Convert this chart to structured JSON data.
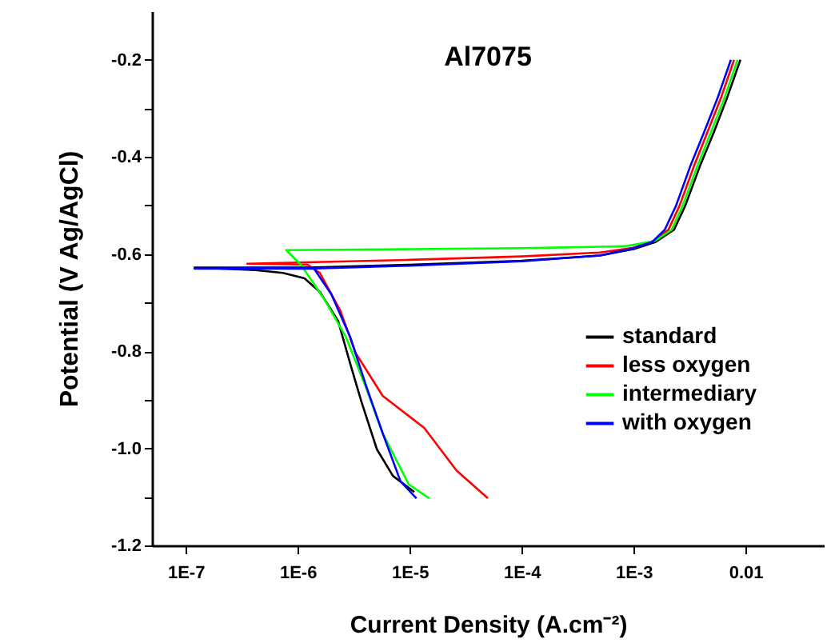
{
  "chart_data": {
    "type": "line",
    "title": "Al7075",
    "xlabel": "Current Density  (A.cm⁻²)",
    "ylabel": "Potential (V Ag/AgCl)",
    "log": "x",
    "xlim": [
      5e-08,
      0.05
    ],
    "ylim": [
      -1.2,
      -0.1
    ],
    "xticks": [
      {
        "value": 1e-07,
        "label": "1E-7"
      },
      {
        "value": 1e-06,
        "label": "1E-6"
      },
      {
        "value": 1e-05,
        "label": "1E-5"
      },
      {
        "value": 0.0001,
        "label": "1E-4"
      },
      {
        "value": 0.001,
        "label": "1E-3"
      },
      0.01
    ],
    "yticks": [
      {
        "value": -1.2,
        "label": "-1.2"
      },
      {
        "value": -1.1,
        "label": null
      },
      {
        "value": -1.0,
        "label": "-1.0"
      },
      {
        "value": -0.9,
        "label": null
      },
      -0.8,
      {
        "value": -0.7,
        "label": null
      },
      -0.6,
      {
        "value": -0.5,
        "label": null
      },
      -0.4,
      {
        "value": -0.3,
        "label": null
      },
      -0.2
    ],
    "grid": false,
    "legend": "right",
    "marker": "none",
    "line_style": "solid",
    "series": [
      {
        "name": "standard",
        "color": "#000000",
        "x": [
          1.1e-05,
          7.1e-06,
          5.1e-06,
          3.7e-06,
          2.95e-06,
          2.3e-06,
          1.58e-06,
          1.15e-06,
          7.4e-07,
          4.2e-07,
          1.2e-07,
          1.26e-06,
          1e-05,
          0.0001,
          0.0005,
          0.001,
          0.00158,
          0.0023,
          0.0029,
          0.0039,
          0.0052,
          0.0068,
          0.009
        ],
        "values": [
          -1.09,
          -1.057,
          -1.002,
          -0.903,
          -0.826,
          -0.738,
          -0.678,
          -0.65,
          -0.639,
          -0.633,
          -0.628,
          -0.628,
          -0.622,
          -0.614,
          -0.603,
          -0.59,
          -0.575,
          -0.55,
          -0.5,
          -0.42,
          -0.35,
          -0.28,
          -0.2
        ]
      },
      {
        "name": "less oxygen",
        "color": "#ff0000",
        "x": [
          5e-05,
          2.63e-05,
          1.35e-05,
          5.75e-06,
          3.3e-06,
          2.4e-06,
          1.58e-06,
          1.23e-06,
          3.55e-07,
          1e-05,
          0.0001,
          0.0005,
          0.001,
          0.0015,
          0.00205,
          0.00258,
          0.00345,
          0.00455,
          0.006,
          0.0079
        ],
        "values": [
          -1.103,
          -1.046,
          -0.958,
          -0.892,
          -0.804,
          -0.716,
          -0.639,
          -0.622,
          -0.62,
          -0.612,
          -0.605,
          -0.597,
          -0.587,
          -0.573,
          -0.55,
          -0.5,
          -0.42,
          -0.35,
          -0.28,
          -0.2
        ]
      },
      {
        "name": "intermediary",
        "color": "#00ff00",
        "x": [
          1.5e-05,
          9.8e-06,
          5.75e-06,
          4e-06,
          2.7e-06,
          1.74e-06,
          1.07e-06,
          7.9e-07,
          1e-05,
          0.0001,
          0.00083,
          0.00155,
          0.00219,
          0.00275,
          0.0037,
          0.0049,
          0.00645,
          0.0085
        ],
        "values": [
          -1.103,
          -1.074,
          -0.969,
          -0.87,
          -0.771,
          -0.694,
          -0.622,
          -0.592,
          -0.59,
          -0.588,
          -0.584,
          -0.573,
          -0.55,
          -0.5,
          -0.42,
          -0.35,
          -0.28,
          -0.2
        ]
      },
      {
        "name": "with oxygen",
        "color": "#0000ff",
        "x": [
          1.15e-05,
          8.3e-06,
          5.75e-06,
          4.07e-06,
          2.95e-06,
          2e-06,
          1.38e-06,
          1.2e-07,
          1.26e-06,
          1e-05,
          0.0001,
          0.0005,
          0.00093,
          0.00147,
          0.0019,
          0.0024,
          0.0032,
          0.00425,
          0.0056,
          0.0074
        ],
        "values": [
          -1.103,
          -1.068,
          -0.969,
          -0.87,
          -0.771,
          -0.683,
          -0.628,
          -0.63,
          -0.63,
          -0.624,
          -0.615,
          -0.603,
          -0.59,
          -0.575,
          -0.55,
          -0.5,
          -0.42,
          -0.35,
          -0.28,
          -0.2
        ]
      }
    ]
  }
}
